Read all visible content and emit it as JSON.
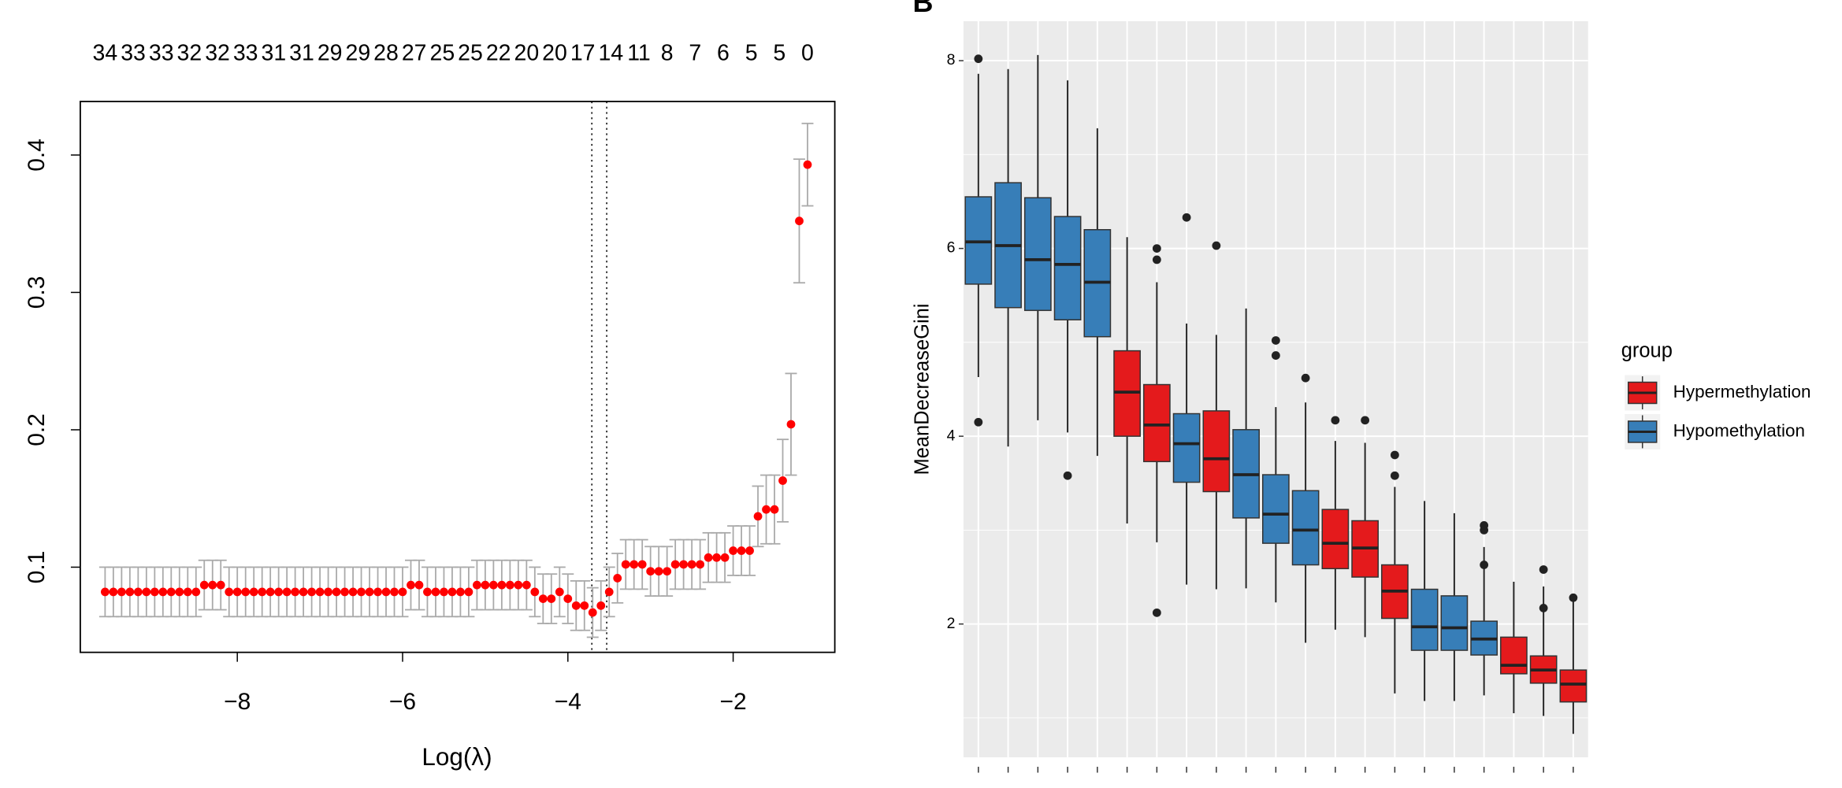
{
  "chart_data": [
    {
      "type": "errorbar",
      "top_labels": [
        34,
        33,
        33,
        32,
        32,
        33,
        31,
        31,
        29,
        29,
        28,
        27,
        25,
        25,
        22,
        20,
        20,
        17,
        14,
        11,
        8,
        7,
        6,
        5,
        5,
        0
      ],
      "xlabel": "Log(λ)",
      "x": [
        -9.6,
        -9.5,
        -9.4,
        -9.3,
        -9.2,
        -9.1,
        -9.0,
        -8.9,
        -8.8,
        -8.7,
        -8.6,
        -8.5,
        -8.4,
        -8.3,
        -8.2,
        -8.1,
        -8.0,
        -7.9,
        -7.8,
        -7.7,
        -7.6,
        -7.5,
        -7.4,
        -7.3,
        -7.2,
        -7.1,
        -7.0,
        -6.9,
        -6.8,
        -6.7,
        -6.6,
        -6.5,
        -6.4,
        -6.3,
        -6.2,
        -6.1,
        -6.0,
        -5.9,
        -5.8,
        -5.7,
        -5.6,
        -5.5,
        -5.4,
        -5.3,
        -5.2,
        -5.1,
        -5.0,
        -4.9,
        -4.8,
        -4.7,
        -4.6,
        -4.5,
        -4.4,
        -4.3,
        -4.2,
        -4.1,
        -4.0,
        -3.9,
        -3.8,
        -3.7,
        -3.6,
        -3.5,
        -3.4,
        -3.3,
        -3.2,
        -3.1,
        -3.0,
        -2.9,
        -2.8,
        -2.7,
        -2.6,
        -2.5,
        -2.4,
        -2.3,
        -2.2,
        -2.1,
        -2.0,
        -1.9,
        -1.8,
        -1.7,
        -1.6,
        -1.5,
        -1.4,
        -1.3,
        -1.2,
        -1.1
      ],
      "values": [
        0.082,
        0.082,
        0.082,
        0.082,
        0.082,
        0.082,
        0.082,
        0.082,
        0.082,
        0.082,
        0.082,
        0.082,
        0.087,
        0.087,
        0.087,
        0.082,
        0.082,
        0.082,
        0.082,
        0.082,
        0.082,
        0.082,
        0.082,
        0.082,
        0.082,
        0.082,
        0.082,
        0.082,
        0.082,
        0.082,
        0.082,
        0.082,
        0.082,
        0.082,
        0.082,
        0.082,
        0.082,
        0.087,
        0.087,
        0.082,
        0.082,
        0.082,
        0.082,
        0.082,
        0.082,
        0.087,
        0.087,
        0.087,
        0.087,
        0.087,
        0.087,
        0.087,
        0.082,
        0.077,
        0.077,
        0.082,
        0.077,
        0.072,
        0.072,
        0.067,
        0.072,
        0.082,
        0.092,
        0.102,
        0.102,
        0.102,
        0.097,
        0.097,
        0.097,
        0.102,
        0.102,
        0.102,
        0.102,
        0.107,
        0.107,
        0.107,
        0.112,
        0.112,
        0.112,
        0.137,
        0.142,
        0.142,
        0.163,
        0.204,
        0.352,
        0.393
      ],
      "errors": [
        0.018,
        0.018,
        0.018,
        0.018,
        0.018,
        0.018,
        0.018,
        0.018,
        0.018,
        0.018,
        0.018,
        0.018,
        0.018,
        0.018,
        0.018,
        0.018,
        0.018,
        0.018,
        0.018,
        0.018,
        0.018,
        0.018,
        0.018,
        0.018,
        0.018,
        0.018,
        0.018,
        0.018,
        0.018,
        0.018,
        0.018,
        0.018,
        0.018,
        0.018,
        0.018,
        0.018,
        0.018,
        0.018,
        0.018,
        0.018,
        0.018,
        0.018,
        0.018,
        0.018,
        0.018,
        0.018,
        0.018,
        0.018,
        0.018,
        0.018,
        0.018,
        0.018,
        0.018,
        0.018,
        0.018,
        0.018,
        0.018,
        0.018,
        0.018,
        0.018,
        0.018,
        0.018,
        0.018,
        0.018,
        0.018,
        0.018,
        0.018,
        0.018,
        0.018,
        0.018,
        0.018,
        0.018,
        0.018,
        0.018,
        0.018,
        0.018,
        0.018,
        0.018,
        0.018,
        0.022,
        0.025,
        0.025,
        0.03,
        0.037,
        0.045,
        0.03
      ],
      "color": "#ff0000",
      "error_color": "#aaaaaa",
      "xlim": [
        -9.9,
        -0.77
      ],
      "ylim": [
        0.038,
        0.439
      ],
      "xticks": [
        {
          "value": -8,
          "label": "−8"
        },
        {
          "value": -6,
          "label": "−6"
        },
        {
          "value": -4,
          "label": "−4"
        },
        {
          "value": -2,
          "label": "−2"
        }
      ],
      "yticks": [
        0.1,
        0.2,
        0.3,
        0.4
      ],
      "vlines": [
        -3.71,
        -3.53
      ]
    },
    {
      "type": "boxplot",
      "panel_label": "B",
      "ylabel": "MeanDecreaseGini",
      "legend_title": "group",
      "legend": "right",
      "categories": [
        null,
        null,
        null,
        null,
        null,
        null,
        null,
        null,
        null,
        null,
        null,
        null,
        null,
        null,
        null,
        null,
        null,
        null,
        null,
        null,
        null
      ],
      "series": [
        {
          "name": "Hypermethylation",
          "color": "#e41a1c",
          "q1": [
            null,
            null,
            null,
            null,
            null,
            4.0,
            3.73,
            null,
            3.41,
            null,
            null,
            null,
            2.59,
            2.5,
            2.06,
            null,
            null,
            null,
            1.47,
            1.37,
            1.17
          ],
          "median": [
            null,
            null,
            null,
            null,
            null,
            4.47,
            4.12,
            null,
            3.76,
            null,
            null,
            null,
            2.86,
            2.81,
            2.35,
            null,
            null,
            null,
            1.56,
            1.51,
            1.36
          ],
          "q3": [
            null,
            null,
            null,
            null,
            null,
            4.91,
            4.55,
            null,
            4.27,
            null,
            null,
            null,
            3.22,
            3.1,
            2.63,
            null,
            null,
            null,
            1.86,
            1.66,
            1.51
          ],
          "whislo": [
            null,
            null,
            null,
            null,
            null,
            3.07,
            2.87,
            null,
            2.37,
            null,
            null,
            null,
            1.94,
            1.86,
            1.26,
            null,
            null,
            null,
            1.05,
            1.02,
            0.83
          ],
          "whishi": [
            null,
            null,
            null,
            null,
            null,
            6.12,
            5.64,
            null,
            5.08,
            null,
            null,
            null,
            3.95,
            3.93,
            3.46,
            null,
            null,
            null,
            2.45,
            2.4,
            2.24
          ],
          "outliers": [
            null,
            null,
            null,
            null,
            null,
            [],
            [
              6.0,
              5.88,
              2.12
            ],
            null,
            [
              6.03
            ],
            null,
            null,
            null,
            [
              4.17
            ],
            [
              4.17
            ],
            [
              3.8,
              3.58
            ],
            null,
            null,
            null,
            [],
            [
              2.58,
              2.17
            ],
            [
              2.28
            ]
          ]
        },
        {
          "name": "Hypomethylation",
          "color": "#377eb8",
          "q1": [
            5.62,
            5.37,
            5.34,
            5.24,
            5.06,
            null,
            null,
            3.51,
            null,
            3.13,
            2.86,
            2.63,
            null,
            null,
            null,
            1.72,
            1.72,
            1.67,
            null,
            null,
            null
          ],
          "median": [
            6.07,
            6.03,
            5.88,
            5.83,
            5.64,
            null,
            null,
            3.92,
            null,
            3.59,
            3.17,
            3.0,
            null,
            null,
            null,
            1.97,
            1.96,
            1.84,
            null,
            null,
            null
          ],
          "q3": [
            6.55,
            6.7,
            6.54,
            6.34,
            6.2,
            null,
            null,
            4.24,
            null,
            4.07,
            3.59,
            3.42,
            null,
            null,
            null,
            2.37,
            2.3,
            2.03,
            null,
            null,
            null
          ],
          "whislo": [
            4.63,
            3.89,
            4.17,
            4.04,
            3.79,
            null,
            null,
            2.42,
            null,
            2.38,
            2.23,
            1.8,
            null,
            null,
            null,
            1.18,
            1.18,
            1.24,
            null,
            null,
            null
          ],
          "whishi": [
            7.86,
            7.91,
            8.06,
            7.79,
            7.28,
            null,
            null,
            5.2,
            null,
            5.36,
            4.31,
            4.36,
            null,
            null,
            null,
            3.31,
            3.18,
            2.82,
            null,
            null,
            null
          ],
          "outliers": [
            [
              8.02,
              4.15
            ],
            [],
            [],
            [
              3.58
            ],
            [],
            null,
            null,
            [
              6.33
            ],
            null,
            [],
            [
              5.02,
              4.86
            ],
            [
              4.62
            ],
            null,
            null,
            null,
            [],
            [],
            [
              3.05,
              3.0,
              2.63
            ],
            null,
            null,
            null
          ]
        }
      ],
      "ylim": [
        0.58,
        8.42
      ],
      "yticks": [
        2,
        4,
        6,
        8
      ],
      "yminor": [
        1,
        3,
        5,
        7
      ],
      "grid": true
    }
  ]
}
